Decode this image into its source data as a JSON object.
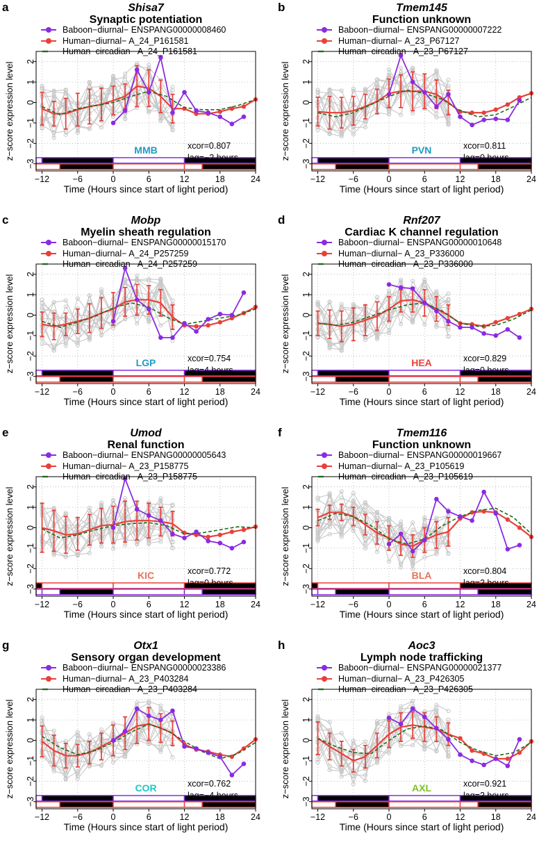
{
  "figure": {
    "xlabel": "Time (Hours since start of light period)",
    "ylabel": "z−score expression level",
    "xticks": [
      "−12",
      "−6",
      "0",
      "6",
      "12",
      "18",
      "24"
    ],
    "yticks": [
      "−3",
      "−2",
      "−1",
      "0",
      "1",
      "2"
    ],
    "colors": {
      "baboon": "#8a2be2",
      "human": "#e8403a",
      "circadian": "#1e6b1e",
      "gray": "#c8c8c8",
      "tissue_default": "#1e9bc6"
    }
  },
  "chart_data": [
    {
      "type": "line",
      "letter": "a",
      "gene": "Shisa7",
      "function": "Synaptic potentiation",
      "legend": [
        "Baboon−diurnal− ENSPANG00000008460",
        "Human−diurnal− A_24_P161581",
        "Human−circadian− A_24_P161581"
      ],
      "tissue": "MMB",
      "tissue_color": "#1e9bc6",
      "xcor": "xcor=0.807",
      "lag": "lag=−2 hours",
      "bars_top": "baboon",
      "xlim": [
        -13,
        24
      ],
      "ylim": [
        -3,
        2.5
      ],
      "baboon": {
        "x": [
          0,
          2,
          4,
          6,
          8,
          10,
          12,
          14,
          16,
          18,
          20,
          22
        ],
        "y": [
          -1.0,
          -0.4,
          1.6,
          0.5,
          2.2,
          -0.5,
          0.5,
          -0.4,
          -0.5,
          -0.7,
          -1.05,
          -0.7
        ]
      },
      "human": {
        "x": [
          -12,
          -10,
          -8,
          -6,
          -4,
          -2,
          0,
          2,
          4,
          6,
          8,
          10,
          12,
          14,
          16,
          18,
          20,
          22,
          24
        ],
        "y": [
          -0.3,
          -0.55,
          -0.55,
          -0.35,
          -0.2,
          -0.1,
          0.1,
          0.3,
          0.8,
          0.7,
          0.3,
          -0.3,
          -0.3,
          -0.55,
          -0.55,
          -0.45,
          -0.3,
          -0.2,
          0.15
        ]
      },
      "human_err": [
        0.8,
        0.6,
        0.75,
        0.8,
        0.85,
        0.8,
        0.7,
        0.6,
        1.0,
        0.9,
        0.8,
        0.7
      ],
      "circadian": {
        "x": [
          -12,
          -9,
          -6,
          -3,
          0,
          3,
          6,
          9,
          12,
          15,
          18,
          21,
          24
        ],
        "y": [
          -0.2,
          -0.6,
          -0.3,
          -0.15,
          0.0,
          0.3,
          0.55,
          0.3,
          -0.25,
          -0.35,
          -0.35,
          -0.15,
          0.15
        ]
      }
    },
    {
      "type": "line",
      "letter": "b",
      "gene": "Tmem145",
      "function": "Function unknown",
      "legend": [
        "Baboon−diurnal− ENSPANG00000007222",
        "Human−diurnal− A_23_P67127",
        "Human−circadian− A_23_P67127"
      ],
      "tissue": "PVN",
      "tissue_color": "#1e9bc6",
      "xcor": "xcor=0.811",
      "lag": "lag=0 hours",
      "bars_top": "baboon",
      "xlim": [
        -13,
        24
      ],
      "ylim": [
        -3,
        2.5
      ],
      "baboon": {
        "x": [
          0,
          2,
          4,
          6,
          8,
          10,
          12,
          14,
          16,
          18,
          20,
          22
        ],
        "y": [
          0.4,
          2.3,
          1.0,
          0.5,
          -0.2,
          0.4,
          -0.7,
          -1.1,
          -0.85,
          -0.8,
          -0.85,
          0.1
        ]
      },
      "human": {
        "x": [
          -12,
          -10,
          -8,
          -6,
          -4,
          -2,
          0,
          2,
          4,
          6,
          8,
          10,
          12,
          14,
          16,
          18,
          20,
          22,
          24
        ],
        "y": [
          -0.45,
          -0.5,
          -0.5,
          -0.4,
          -0.2,
          0.05,
          0.45,
          0.55,
          0.55,
          0.55,
          0.4,
          0.0,
          -0.45,
          -0.5,
          -0.5,
          -0.35,
          -0.1,
          0.25,
          0.45
        ]
      },
      "human_err": [
        0.7,
        0.8,
        0.75,
        0.7,
        0.6,
        0.6,
        0.7,
        0.8,
        0.95,
        0.85,
        0.7,
        0.6
      ],
      "circadian": {
        "x": [
          -12,
          -9,
          -6,
          -3,
          0,
          3,
          6,
          9,
          12,
          15,
          18,
          21,
          24
        ],
        "y": [
          -0.5,
          -0.7,
          -0.5,
          -0.1,
          0.3,
          0.6,
          0.45,
          0.15,
          -0.4,
          -0.7,
          -0.6,
          -0.2,
          0.25
        ]
      }
    },
    {
      "type": "line",
      "letter": "c",
      "gene": "Mobp",
      "function": "Myelin sheath regulation",
      "legend": [
        "Baboon−diurnal− ENSPANG00000015170",
        "Human−diurnal− A_24_P257259",
        "Human−circadian− A_24_P257259"
      ],
      "tissue": "LGP",
      "tissue_color": "#1e9bc6",
      "xcor": "xcor=0.754",
      "lag": "lag=4 hours",
      "bars_top": "baboon",
      "xlim": [
        -13,
        24
      ],
      "ylim": [
        -3,
        2.5
      ],
      "baboon": {
        "x": [
          0,
          2,
          4,
          6,
          8,
          10,
          12,
          14,
          16,
          18,
          20,
          22
        ],
        "y": [
          -0.3,
          2.3,
          0.75,
          0.3,
          -1.1,
          -1.1,
          -0.4,
          -0.8,
          -0.2,
          0.05,
          0.0,
          1.1
        ]
      },
      "human": {
        "x": [
          -12,
          -10,
          -8,
          -6,
          -4,
          -2,
          0,
          2,
          4,
          6,
          8,
          10,
          12,
          14,
          16,
          18,
          20,
          22,
          24
        ],
        "y": [
          -0.45,
          -0.55,
          -0.45,
          -0.3,
          -0.15,
          0.1,
          0.3,
          0.65,
          0.75,
          0.75,
          0.6,
          -0.1,
          -0.5,
          -0.55,
          -0.5,
          -0.35,
          -0.15,
          0.1,
          0.4
        ]
      },
      "human_err": [
        0.6,
        0.65,
        0.55,
        0.6,
        0.7,
        0.75,
        0.8,
        0.7,
        0.75,
        0.7,
        0.65,
        0.6
      ],
      "circadian": {
        "x": [
          -12,
          -9,
          -6,
          -3,
          0,
          3,
          6,
          9,
          12,
          15,
          18,
          21,
          24
        ],
        "y": [
          -0.3,
          -0.6,
          -0.35,
          -0.05,
          0.35,
          0.6,
          0.4,
          -0.1,
          -0.45,
          -0.3,
          -0.15,
          0.0,
          0.3
        ]
      }
    },
    {
      "type": "line",
      "letter": "d",
      "gene": "Rnf207",
      "function": "Cardiac K channel regulation",
      "legend": [
        "Baboon−diurnal− ENSPANG00000010648",
        "Human−diurnal− A_23_P336000",
        "Human−circadian− A_23_P336000"
      ],
      "tissue": "HEA",
      "tissue_color": "#e8403a",
      "xcor": "xcor=0.829",
      "lag": "lag=0 hours",
      "bars_top": "baboon",
      "xlim": [
        -13,
        24
      ],
      "ylim": [
        -3,
        2.5
      ],
      "baboon": {
        "x": [
          0,
          2,
          4,
          6,
          8,
          10,
          12,
          14,
          16,
          18,
          20,
          22
        ],
        "y": [
          1.5,
          1.35,
          1.3,
          0.6,
          0.2,
          -0.3,
          -0.6,
          -0.6,
          -0.9,
          -1.0,
          -0.7,
          -1.1
        ]
      },
      "human": {
        "x": [
          -12,
          -10,
          -8,
          -6,
          -4,
          -2,
          0,
          2,
          4,
          6,
          8,
          10,
          12,
          14,
          16,
          18,
          20,
          22,
          24
        ],
        "y": [
          -0.4,
          -0.45,
          -0.55,
          -0.45,
          -0.25,
          -0.05,
          0.3,
          0.7,
          0.75,
          0.6,
          0.3,
          0.0,
          -0.4,
          -0.45,
          -0.55,
          -0.35,
          -0.15,
          0.05,
          0.3
        ]
      },
      "human_err": [
        0.6,
        0.7,
        0.75,
        0.8,
        0.75,
        0.7,
        0.6,
        0.55,
        0.6,
        0.65,
        0.6,
        0.5
      ],
      "circadian": {
        "x": [
          -12,
          -9,
          -6,
          -3,
          0,
          3,
          6,
          9,
          12,
          15,
          18,
          21,
          24
        ],
        "y": [
          -0.4,
          -0.5,
          -0.35,
          -0.05,
          0.25,
          0.5,
          0.6,
          0.2,
          -0.4,
          -0.55,
          -0.5,
          -0.2,
          0.25
        ]
      }
    },
    {
      "type": "line",
      "letter": "e",
      "gene": "Umod",
      "function": "Renal function",
      "legend": [
        "Baboon−diurnal− ENSPANG00000005643",
        "Human−diurnal− A_23_P158775",
        "Human−circadian− A_23_P158775"
      ],
      "tissue": "KIC",
      "tissue_color": "#e8705a",
      "xcor": "xcor=0.772",
      "lag": "lag=0 hours",
      "bars_top": "human",
      "xlim": [
        -13,
        24
      ],
      "ylim": [
        -3,
        2.5
      ],
      "baboon": {
        "x": [
          0,
          2,
          4,
          6,
          8,
          10,
          12,
          14,
          16,
          18,
          20,
          22
        ],
        "y": [
          0.0,
          2.4,
          0.9,
          0.6,
          0.35,
          -0.3,
          -0.5,
          -0.2,
          -0.65,
          -0.75,
          -1.0,
          -0.7
        ]
      },
      "human": {
        "x": [
          -12,
          -10,
          -8,
          -6,
          -4,
          -2,
          0,
          2,
          4,
          6,
          8,
          10,
          12,
          14,
          16,
          18,
          20,
          22,
          24
        ],
        "y": [
          0.0,
          -0.15,
          -0.35,
          -0.3,
          -0.1,
          0.1,
          0.15,
          0.3,
          0.35,
          0.35,
          0.3,
          0.2,
          -0.25,
          -0.35,
          -0.45,
          -0.35,
          -0.2,
          -0.1,
          0.05
        ]
      },
      "human_err": [
        1.2,
        1.0,
        0.9,
        0.8,
        0.75,
        0.85,
        0.9,
        1.0,
        0.95,
        0.85,
        0.7,
        0.6
      ],
      "circadian": {
        "x": [
          -12,
          -9,
          -6,
          -3,
          0,
          3,
          6,
          9,
          12,
          15,
          18,
          21,
          24
        ],
        "y": [
          -0.05,
          -0.5,
          -0.35,
          -0.1,
          0.1,
          0.2,
          0.25,
          0.1,
          -0.3,
          -0.25,
          -0.1,
          0.05,
          0.0
        ]
      }
    },
    {
      "type": "line",
      "letter": "f",
      "gene": "Tmem116",
      "function": "Function unknown",
      "legend": [
        "Baboon−diurnal− ENSPANG00000019667",
        "Human−diurnal− A_23_P105619",
        "Human−circadian− A_23_P105619"
      ],
      "tissue": "BLA",
      "tissue_color": "#e8705a",
      "xcor": "xcor=0.804",
      "lag": "lag=2 hours",
      "bars_top": "human",
      "xlim": [
        -13,
        24
      ],
      "ylim": [
        -3,
        2.5
      ],
      "baboon": {
        "x": [
          0,
          2,
          4,
          6,
          8,
          10,
          12,
          14,
          16,
          18,
          20,
          22
        ],
        "y": [
          -0.8,
          -0.3,
          -1.15,
          -0.6,
          1.4,
          0.8,
          0.55,
          0.35,
          1.75,
          0.7,
          -1.05,
          -0.85
        ]
      },
      "human": {
        "x": [
          -12,
          -10,
          -8,
          -6,
          -4,
          -2,
          0,
          2,
          4,
          6,
          8,
          10,
          12,
          14,
          16,
          18,
          20,
          22,
          24
        ],
        "y": [
          0.5,
          0.75,
          0.75,
          0.55,
          0.15,
          -0.25,
          -0.5,
          -0.8,
          -0.9,
          -0.6,
          -0.35,
          -0.2,
          0.45,
          0.75,
          0.8,
          0.75,
          0.4,
          0.0,
          -0.45
        ]
      },
      "human_err": [
        0.4,
        0.35,
        0.4,
        0.45,
        0.5,
        0.55,
        0.6,
        0.55,
        0.55,
        0.6,
        0.65,
        0.7
      ],
      "circadian": {
        "x": [
          -12,
          -9,
          -6,
          -3,
          0,
          3,
          6,
          9,
          12,
          15,
          18,
          21,
          24
        ],
        "y": [
          0.35,
          0.7,
          0.55,
          0.1,
          -0.55,
          -0.8,
          -0.55,
          0.1,
          0.55,
          0.85,
          0.95,
          0.5,
          -0.3
        ]
      }
    },
    {
      "type": "line",
      "letter": "g",
      "gene": "Otx1",
      "function": "Sensory organ development",
      "legend": [
        "Baboon−diurnal− ENSPANG00000023386",
        "Human−diurnal− A_23_P403284",
        "Human−circadian− A_23_P403284"
      ],
      "tissue": "COR",
      "tissue_color": "#1ec6c6",
      "xcor": "xcor=0.762",
      "lag": "lag=−4 hours",
      "bars_top": "baboon",
      "xlim": [
        -13,
        24
      ],
      "ylim": [
        -3,
        2.5
      ],
      "baboon": {
        "x": [
          0,
          2,
          4,
          6,
          8,
          10,
          12,
          14,
          16,
          18,
          20,
          22
        ],
        "y": [
          0.0,
          0.45,
          1.55,
          1.2,
          1.0,
          1.45,
          -0.3,
          -0.4,
          -0.6,
          -0.8,
          -1.7,
          -1.15
        ]
      },
      "human": {
        "x": [
          -12,
          -10,
          -8,
          -6,
          -4,
          -2,
          0,
          2,
          4,
          6,
          8,
          10,
          12,
          14,
          16,
          18,
          20,
          22,
          24
        ],
        "y": [
          -0.05,
          -0.5,
          -0.75,
          -0.75,
          -0.6,
          -0.3,
          0.0,
          0.35,
          0.7,
          0.8,
          0.6,
          0.35,
          -0.2,
          -0.45,
          -0.55,
          -0.7,
          -0.8,
          -0.4,
          0.05
        ]
      },
      "human_err": [
        0.75,
        0.75,
        0.6,
        0.55,
        0.55,
        0.65,
        0.75,
        0.8,
        0.85,
        0.8,
        0.7,
        0.6
      ],
      "circadian": {
        "x": [
          -12,
          -9,
          -6,
          -3,
          0,
          3,
          6,
          9,
          12,
          15,
          18,
          21,
          24
        ],
        "y": [
          0.2,
          -0.35,
          -0.7,
          -0.5,
          -0.1,
          0.4,
          0.8,
          0.5,
          -0.05,
          -0.55,
          -0.9,
          -0.65,
          -0.1
        ]
      }
    },
    {
      "type": "line",
      "letter": "h",
      "gene": "Aoc3",
      "function": "Lymph node trafficking",
      "legend": [
        "Baboon−diurnal− ENSPANG00000021377",
        "Human−diurnal− A_23_P426305",
        "Human−circadian− A_23_P426305"
      ],
      "tissue": "AXL",
      "tissue_color": "#7ac41e",
      "xcor": "xcor=0.921",
      "lag": "lag=2 hours",
      "bars_top": "baboon",
      "xlim": [
        -13,
        24
      ],
      "ylim": [
        -3,
        2.5
      ],
      "baboon": {
        "x": [
          0,
          2,
          4,
          6,
          8,
          10,
          12,
          14,
          16,
          18,
          20,
          22
        ],
        "y": [
          1.1,
          0.8,
          1.55,
          1.15,
          0.6,
          0.05,
          -0.7,
          -1.0,
          -1.2,
          -0.9,
          -1.25,
          0.05
        ]
      },
      "human": {
        "x": [
          -12,
          -10,
          -8,
          -6,
          -4,
          -2,
          0,
          2,
          4,
          6,
          8,
          10,
          12,
          14,
          16,
          18,
          20,
          22,
          24
        ],
        "y": [
          0.1,
          -0.3,
          -0.65,
          -1.0,
          -0.8,
          -0.25,
          0.3,
          0.65,
          0.75,
          0.65,
          0.55,
          0.3,
          0.1,
          -0.5,
          -0.65,
          -0.9,
          -0.9,
          -0.6,
          -0.05
        ]
      },
      "human_err": [
        0.8,
        0.65,
        0.6,
        0.55,
        0.55,
        0.6,
        0.65,
        0.7,
        0.65,
        0.7,
        0.6,
        0.55
      ],
      "circadian": {
        "x": [
          -12,
          -9,
          -6,
          -3,
          0,
          3,
          6,
          9,
          12,
          15,
          18,
          21,
          24
        ],
        "y": [
          0.1,
          -0.3,
          -0.6,
          -0.65,
          0.0,
          0.55,
          0.7,
          0.5,
          -0.1,
          -0.5,
          -0.75,
          -0.6,
          -0.1
        ]
      }
    }
  ]
}
